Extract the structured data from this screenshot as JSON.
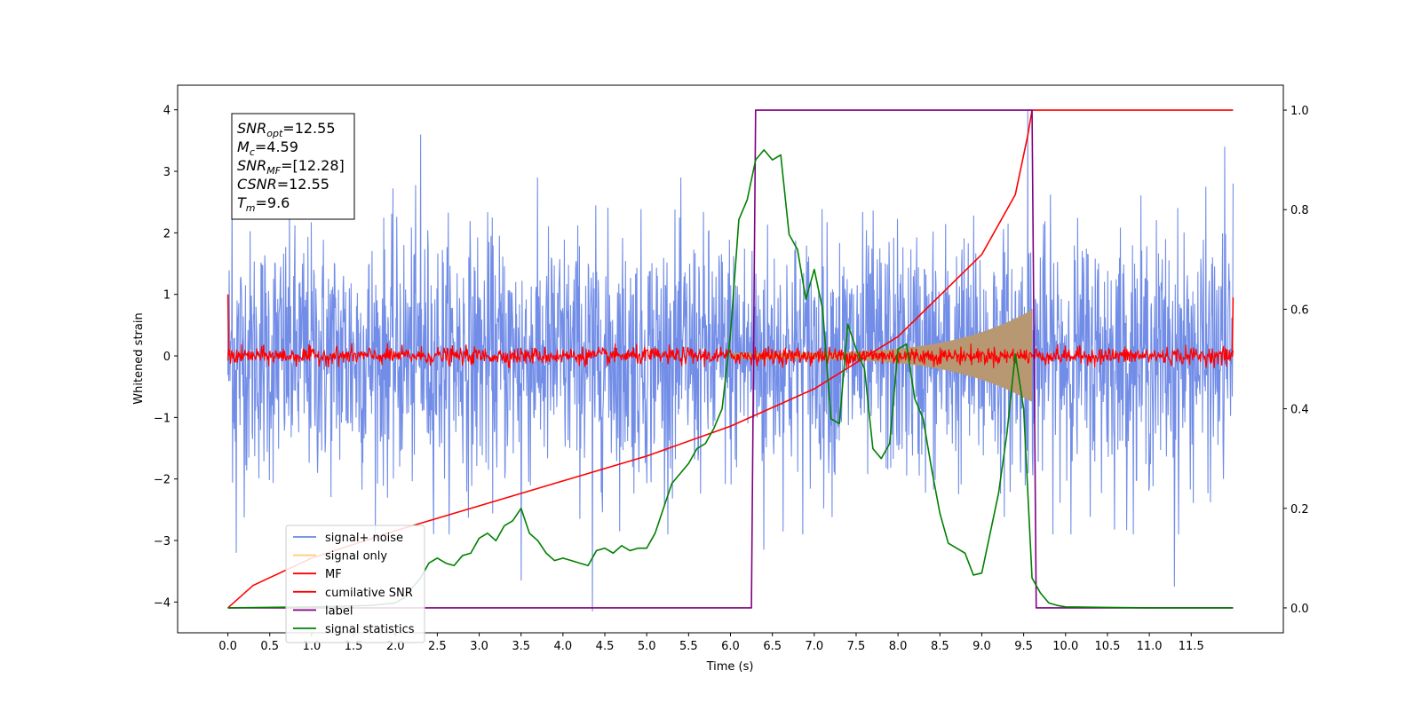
{
  "chart_data": {
    "type": "line",
    "title": "",
    "xlabel": "Time (s)",
    "ylabel": "Whitened strain",
    "xlim": [
      -0.6,
      12.6
    ],
    "ylim": [
      -4.5,
      4.4
    ],
    "y2lim": [
      -0.05,
      1.05
    ],
    "x_ticks": [
      0.0,
      0.5,
      1.0,
      1.5,
      2.0,
      2.5,
      3.0,
      3.5,
      4.0,
      4.5,
      5.0,
      5.5,
      6.0,
      6.5,
      7.0,
      7.5,
      8.0,
      8.5,
      9.0,
      9.5,
      10.0,
      10.5,
      11.0,
      11.5
    ],
    "x_tick_labels": [
      "0.0",
      "0.5",
      "1.0",
      "1.5",
      "2.0",
      "2.5",
      "3.0",
      "3.5",
      "4.0",
      "4.5",
      "5.0",
      "5.5",
      "6.0",
      "6.5",
      "7.0",
      "7.5",
      "8.0",
      "8.5",
      "9.0",
      "9.5",
      "10.0",
      "10.5",
      "11.0",
      "11.5"
    ],
    "y_ticks": [
      -4,
      -3,
      -2,
      -1,
      0,
      1,
      2,
      3,
      4
    ],
    "y_tick_labels": [
      "−4",
      "−3",
      "−2",
      "−1",
      "0",
      "1",
      "2",
      "3",
      "4"
    ],
    "y2_ticks": [
      0.0,
      0.2,
      0.4,
      0.6,
      0.8,
      1.0
    ],
    "y2_tick_labels": [
      "0.0",
      "0.2",
      "0.4",
      "0.6",
      "0.8",
      "1.0"
    ],
    "legend_position": "lower-left",
    "grid": false,
    "colors": {
      "signal_noise": "#6a87e6",
      "signal_only": "#ffc87a",
      "mf": "#ff0000",
      "cumulative_snr": "#ff0000",
      "label": "#800080",
      "signal_statistics": "#008000"
    },
    "stats_box": [
      {
        "sym": "SNR",
        "sub": "opt",
        "value": "=12.55"
      },
      {
        "sym": "M",
        "sub": "c",
        "value": "=4.59"
      },
      {
        "sym": "SNR",
        "sub": "MF",
        "value": "=[12.28]"
      },
      {
        "sym": "CSNR",
        "sub": "",
        "value": "=12.55"
      },
      {
        "sym": "T",
        "sub": "m",
        "value": "=9.6"
      }
    ],
    "series": [
      {
        "name": "signal+ noise",
        "axis": "left",
        "kind": "noise",
        "x_range": [
          0.0,
          12.0
        ],
        "sigma": 1.0,
        "extremes": [
          [
            0.05,
            2.9
          ],
          [
            0.1,
            -3.2
          ],
          [
            2.3,
            3.6
          ],
          [
            3.5,
            -3.65
          ],
          [
            4.35,
            -4.15
          ],
          [
            9.55,
            4.0
          ],
          [
            11.9,
            3.4
          ],
          [
            12.0,
            2.8
          ],
          [
            11.3,
            -3.75
          ],
          [
            6.4,
            -3.15
          ]
        ]
      },
      {
        "name": "signal only",
        "axis": "left",
        "kind": "chirp-envelope",
        "x_range": [
          6.0,
          9.6
        ],
        "amplitude_start": 0.05,
        "amplitude_end": 0.75
      },
      {
        "name": "MF",
        "axis": "left",
        "kind": "noise",
        "x_range": [
          0.0,
          12.0
        ],
        "sigma": 0.07,
        "edge_spikes": [
          [
            0.0,
            1.0
          ],
          [
            12.0,
            0.95
          ]
        ]
      },
      {
        "name": "cumilative SNR",
        "axis": "right",
        "x": [
          0.0,
          0.3,
          1.0,
          2.0,
          3.0,
          4.0,
          5.0,
          6.0,
          7.0,
          8.0,
          9.0,
          9.4,
          9.55,
          9.6,
          9.61,
          12.0
        ],
        "values": [
          0.0,
          0.045,
          0.1,
          0.155,
          0.205,
          0.255,
          0.305,
          0.365,
          0.44,
          0.545,
          0.71,
          0.83,
          0.95,
          1.0,
          1.0,
          1.0
        ]
      },
      {
        "name": "label",
        "axis": "right",
        "x": [
          0.0,
          6.25,
          6.3,
          9.6,
          9.65,
          12.0
        ],
        "values": [
          0.0,
          0.0,
          1.0,
          1.0,
          0.0,
          0.0
        ]
      },
      {
        "name": "signal statistics",
        "axis": "right",
        "x": [
          0.0,
          1.0,
          1.7,
          2.0,
          2.1,
          2.2,
          2.3,
          2.4,
          2.5,
          2.6,
          2.7,
          2.8,
          2.9,
          3.0,
          3.1,
          3.2,
          3.3,
          3.4,
          3.5,
          3.6,
          3.7,
          3.8,
          3.9,
          4.0,
          4.1,
          4.2,
          4.3,
          4.4,
          4.5,
          4.6,
          4.7,
          4.8,
          4.9,
          5.0,
          5.1,
          5.2,
          5.3,
          5.4,
          5.5,
          5.6,
          5.7,
          5.8,
          5.9,
          6.0,
          6.1,
          6.2,
          6.3,
          6.4,
          6.5,
          6.6,
          6.7,
          6.8,
          6.9,
          7.0,
          7.1,
          7.2,
          7.3,
          7.4,
          7.5,
          7.6,
          7.7,
          7.8,
          7.9,
          8.0,
          8.1,
          8.2,
          8.3,
          8.4,
          8.5,
          8.6,
          8.7,
          8.8,
          8.9,
          9.0,
          9.1,
          9.2,
          9.3,
          9.4,
          9.5,
          9.6,
          9.7,
          9.8,
          9.9,
          10.0,
          10.5,
          11.0,
          12.0
        ],
        "values": [
          0.0,
          0.002,
          0.005,
          0.01,
          0.02,
          0.04,
          0.06,
          0.09,
          0.1,
          0.09,
          0.085,
          0.105,
          0.11,
          0.14,
          0.15,
          0.135,
          0.165,
          0.175,
          0.2,
          0.15,
          0.135,
          0.11,
          0.095,
          0.1,
          0.095,
          0.09,
          0.085,
          0.115,
          0.12,
          0.11,
          0.125,
          0.115,
          0.12,
          0.12,
          0.15,
          0.2,
          0.25,
          0.27,
          0.29,
          0.32,
          0.33,
          0.36,
          0.4,
          0.55,
          0.78,
          0.82,
          0.9,
          0.92,
          0.9,
          0.91,
          0.75,
          0.72,
          0.62,
          0.68,
          0.6,
          0.38,
          0.37,
          0.57,
          0.52,
          0.48,
          0.32,
          0.3,
          0.33,
          0.52,
          0.53,
          0.42,
          0.38,
          0.28,
          0.19,
          0.13,
          0.12,
          0.11,
          0.066,
          0.07,
          0.15,
          0.23,
          0.35,
          0.51,
          0.4,
          0.06,
          0.03,
          0.01,
          0.005,
          0.002,
          0.001,
          0.0,
          0.0
        ]
      }
    ]
  }
}
